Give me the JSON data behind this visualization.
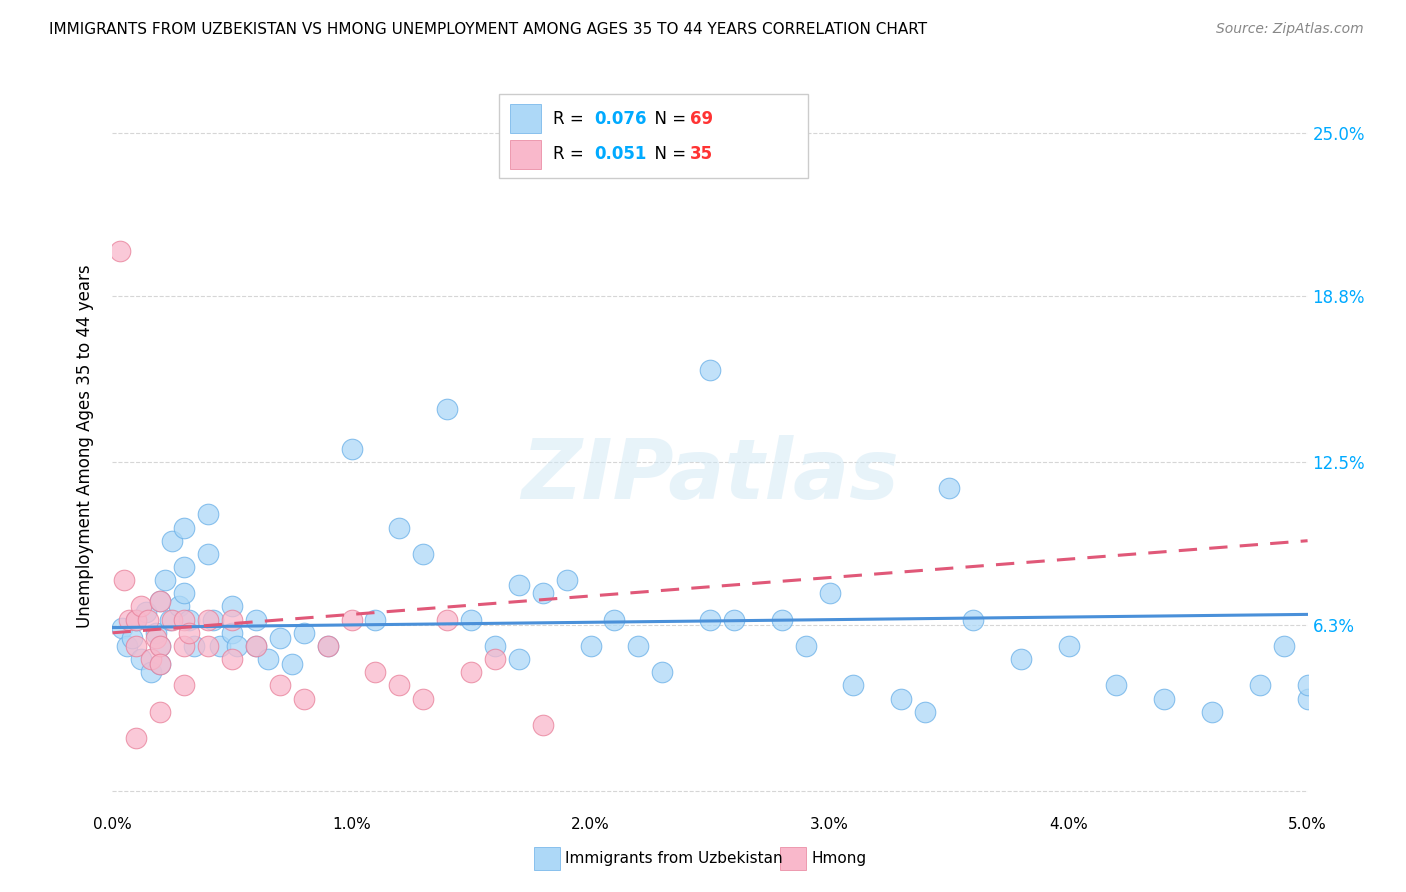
{
  "title": "IMMIGRANTS FROM UZBEKISTAN VS HMONG UNEMPLOYMENT AMONG AGES 35 TO 44 YEARS CORRELATION CHART",
  "source": "Source: ZipAtlas.com",
  "ylabel": "Unemployment Among Ages 35 to 44 years",
  "xlim": [
    0.0,
    0.05
  ],
  "ylim": [
    -0.008,
    0.27
  ],
  "yticks": [
    0.0,
    0.063,
    0.125,
    0.188,
    0.25
  ],
  "ytick_labels": [
    "",
    "6.3%",
    "12.5%",
    "18.8%",
    "25.0%"
  ],
  "xticks": [
    0.0,
    0.01,
    0.02,
    0.03,
    0.04,
    0.05
  ],
  "xtick_labels": [
    "0.0%",
    "1.0%",
    "2.0%",
    "3.0%",
    "4.0%",
    "5.0%"
  ],
  "legend1_r": "0.076",
  "legend1_n": "69",
  "legend2_r": "0.051",
  "legend2_n": "35",
  "legend1_label": "Immigrants from Uzbekistan",
  "legend2_label": "Hmong",
  "watermark": "ZIPatlas",
  "uzbek_color": "#add8f7",
  "hmong_color": "#f9b8cb",
  "uzbek_edge_color": "#6ab0e8",
  "hmong_edge_color": "#e8809a",
  "uzbek_line_color": "#4a90d9",
  "hmong_line_color": "#e05878",
  "r_color": "#00aaff",
  "n_color": "#ff3333",
  "uzbek_x": [
    0.0004,
    0.0006,
    0.0008,
    0.001,
    0.0012,
    0.0014,
    0.0016,
    0.0018,
    0.002,
    0.002,
    0.002,
    0.0022,
    0.0024,
    0.0025,
    0.0028,
    0.003,
    0.003,
    0.003,
    0.0032,
    0.0034,
    0.004,
    0.004,
    0.0042,
    0.0045,
    0.005,
    0.005,
    0.0052,
    0.006,
    0.006,
    0.0065,
    0.007,
    0.0075,
    0.008,
    0.009,
    0.01,
    0.011,
    0.012,
    0.013,
    0.014,
    0.015,
    0.016,
    0.017,
    0.018,
    0.019,
    0.02,
    0.021,
    0.022,
    0.023,
    0.025,
    0.026,
    0.028,
    0.029,
    0.03,
    0.031,
    0.033,
    0.034,
    0.035,
    0.036,
    0.038,
    0.04,
    0.042,
    0.044,
    0.046,
    0.048,
    0.049,
    0.05,
    0.05,
    0.025,
    0.017
  ],
  "uzbek_y": [
    0.062,
    0.055,
    0.058,
    0.065,
    0.05,
    0.068,
    0.045,
    0.06,
    0.072,
    0.055,
    0.048,
    0.08,
    0.065,
    0.095,
    0.07,
    0.075,
    0.1,
    0.085,
    0.065,
    0.055,
    0.105,
    0.09,
    0.065,
    0.055,
    0.06,
    0.07,
    0.055,
    0.065,
    0.055,
    0.05,
    0.058,
    0.048,
    0.06,
    0.055,
    0.13,
    0.065,
    0.1,
    0.09,
    0.145,
    0.065,
    0.055,
    0.05,
    0.075,
    0.08,
    0.055,
    0.065,
    0.055,
    0.045,
    0.065,
    0.065,
    0.065,
    0.055,
    0.075,
    0.04,
    0.035,
    0.03,
    0.115,
    0.065,
    0.05,
    0.055,
    0.04,
    0.035,
    0.03,
    0.04,
    0.055,
    0.035,
    0.04,
    0.16,
    0.078
  ],
  "hmong_x": [
    0.0003,
    0.0005,
    0.0007,
    0.001,
    0.001,
    0.0012,
    0.0015,
    0.0016,
    0.0018,
    0.002,
    0.002,
    0.002,
    0.0025,
    0.003,
    0.003,
    0.003,
    0.0032,
    0.004,
    0.004,
    0.005,
    0.005,
    0.006,
    0.007,
    0.008,
    0.009,
    0.01,
    0.011,
    0.012,
    0.013,
    0.014,
    0.015,
    0.016,
    0.018,
    0.002,
    0.001
  ],
  "hmong_y": [
    0.205,
    0.08,
    0.065,
    0.065,
    0.055,
    0.07,
    0.065,
    0.05,
    0.058,
    0.072,
    0.055,
    0.048,
    0.065,
    0.065,
    0.055,
    0.04,
    0.06,
    0.065,
    0.055,
    0.065,
    0.05,
    0.055,
    0.04,
    0.035,
    0.055,
    0.065,
    0.045,
    0.04,
    0.035,
    0.065,
    0.045,
    0.05,
    0.025,
    0.03,
    0.02
  ],
  "uzbek_trendline_x0": 0.0,
  "uzbek_trendline_x1": 0.05,
  "uzbek_trendline_y0": 0.062,
  "uzbek_trendline_y1": 0.067,
  "hmong_trendline_x0": 0.0,
  "hmong_trendline_x1": 0.05,
  "hmong_trendline_y0": 0.06,
  "hmong_trendline_y1": 0.095
}
